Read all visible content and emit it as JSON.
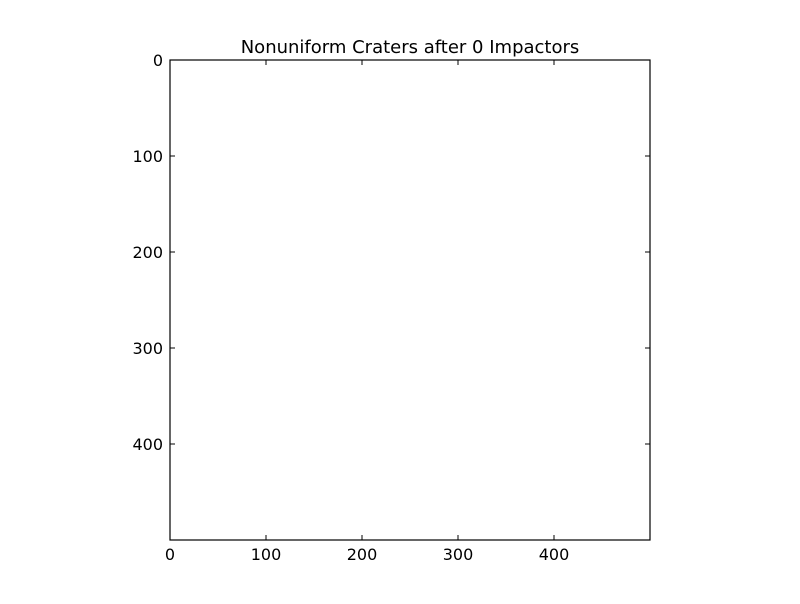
{
  "chart_data": {
    "type": "heatmap",
    "title": "Nonuniform Craters after 0 Impactors",
    "xlabel": "",
    "ylabel": "",
    "xlim": [
      0,
      500
    ],
    "ylim": [
      500,
      0
    ],
    "y_inverted": true,
    "x_ticks": [
      0,
      100,
      200,
      300,
      400
    ],
    "y_ticks": [
      0,
      100,
      200,
      300,
      400
    ],
    "grid": false,
    "background_color": "#ffffff",
    "values": []
  }
}
